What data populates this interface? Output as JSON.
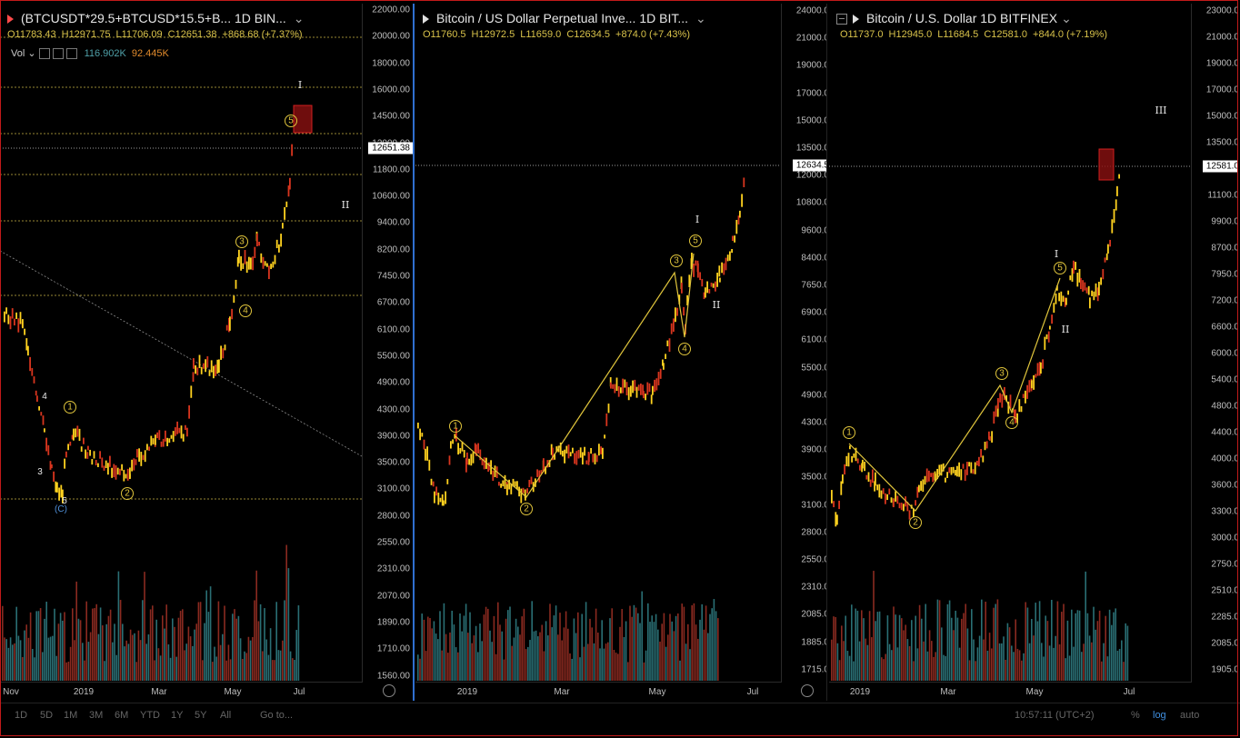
{
  "panes": [
    {
      "title": "(BTCUSDT*29.5+BTCUSD*15.5+B...   1D   BIN...",
      "flag_color": "#ff4a4a",
      "ohlc": {
        "o": "O11783.43",
        "h": "H12971.75",
        "l": "L11706.09",
        "c": "C12651.38",
        "chg": "+868.68 (+7.37%)"
      },
      "vol": {
        "label": "Vol",
        "v1": "116.902K",
        "v2": "92.445K"
      },
      "price_label": "12651.38",
      "yticks": [
        "22000.00",
        "20000.00",
        "18000.00",
        "16000.00",
        "14500.00",
        "12000.00",
        "11800.00",
        "10600.00",
        "9400.00",
        "8200.00",
        "7450.00",
        "6700.00",
        "6100.00",
        "5500.00",
        "4900.00",
        "4300.00",
        "3900.00",
        "3500.00",
        "3100.00",
        "2800.00",
        "2550.00",
        "2310.00",
        "2070.00",
        "1890.00",
        "1710.00",
        "1560.00"
      ],
      "xlabels": [
        "Nov",
        "2019",
        "Mar",
        "May",
        "Jul"
      ],
      "waves": [
        "1",
        "2",
        "3",
        "4",
        "5"
      ],
      "roman": [
        "I",
        "II"
      ],
      "extra": [
        "4",
        "3",
        "5",
        "(C)"
      ]
    },
    {
      "title": "Bitcoin / US Dollar Perpetual Inve...   1D   BIT...",
      "flag_color": "#e0e0e0",
      "ohlc": {
        "o": "O11760.5",
        "h": "H12972.5",
        "l": "L11659.0",
        "c": "C12634.5",
        "chg": "+874.0 (+7.43%)"
      },
      "price_label": "12634.5",
      "yticks": [
        "24000.0",
        "21000.0",
        "19000.0",
        "17000.0",
        "15000.0",
        "13500.0",
        "12000.0",
        "10800.0",
        "9600.0",
        "8400.0",
        "7650.0",
        "6900.0",
        "6100.0",
        "5500.0",
        "4900.0",
        "4300.0",
        "3900.0",
        "3500.0",
        "3100.0",
        "2800.0",
        "2550.0",
        "2310.0",
        "2085.0",
        "1885.0",
        "1715.0"
      ],
      "xlabels": [
        "2019",
        "Mar",
        "May",
        "Jul"
      ],
      "waves": [
        "1",
        "2",
        "3",
        "4",
        "5"
      ],
      "roman": [
        "I",
        "II"
      ]
    },
    {
      "title": "Bitcoin / U.S. Dollar   1D   BITFINEX",
      "flag_color": "#e0e0e0",
      "ohlc": {
        "o": "O11737.0",
        "h": "H12945.0",
        "l": "L11684.5",
        "c": "C12581.0",
        "chg": "+844.0 (+7.19%)"
      },
      "price_label": "12581.0",
      "yticks": [
        "23000.0",
        "21000.0",
        "19000.0",
        "17000.0",
        "15000.0",
        "13500.0",
        "12000.0",
        "11100.0",
        "9900.0",
        "8700.0",
        "7950.0",
        "7200.0",
        "6600.0",
        "6000.0",
        "5400.0",
        "4800.0",
        "4400.0",
        "4000.0",
        "3600.0",
        "3300.0",
        "3000.0",
        "2750.0",
        "2510.0",
        "2285.0",
        "2085.0",
        "1905.0"
      ],
      "xlabels": [
        "2019",
        "Mar",
        "May",
        "Jul"
      ],
      "waves": [
        "1",
        "2",
        "3",
        "4",
        "5"
      ],
      "roman": [
        "I",
        "II",
        "III"
      ]
    }
  ],
  "bottom": {
    "ranges": [
      "1D",
      "5D",
      "1M",
      "3M",
      "6M",
      "YTD",
      "1Y",
      "5Y",
      "All"
    ],
    "goto": "Go to...",
    "time": "10:57:11 (UTC+2)",
    "pct": "%",
    "log": "log",
    "auto": "auto"
  },
  "colors": {
    "accent": "#2f6fd0",
    "wave": "#e0c53c",
    "bull": "#ffd21f",
    "bear": "#d8351e",
    "volume_up": "#2a6f74",
    "volume_down": "#8a2a20"
  }
}
